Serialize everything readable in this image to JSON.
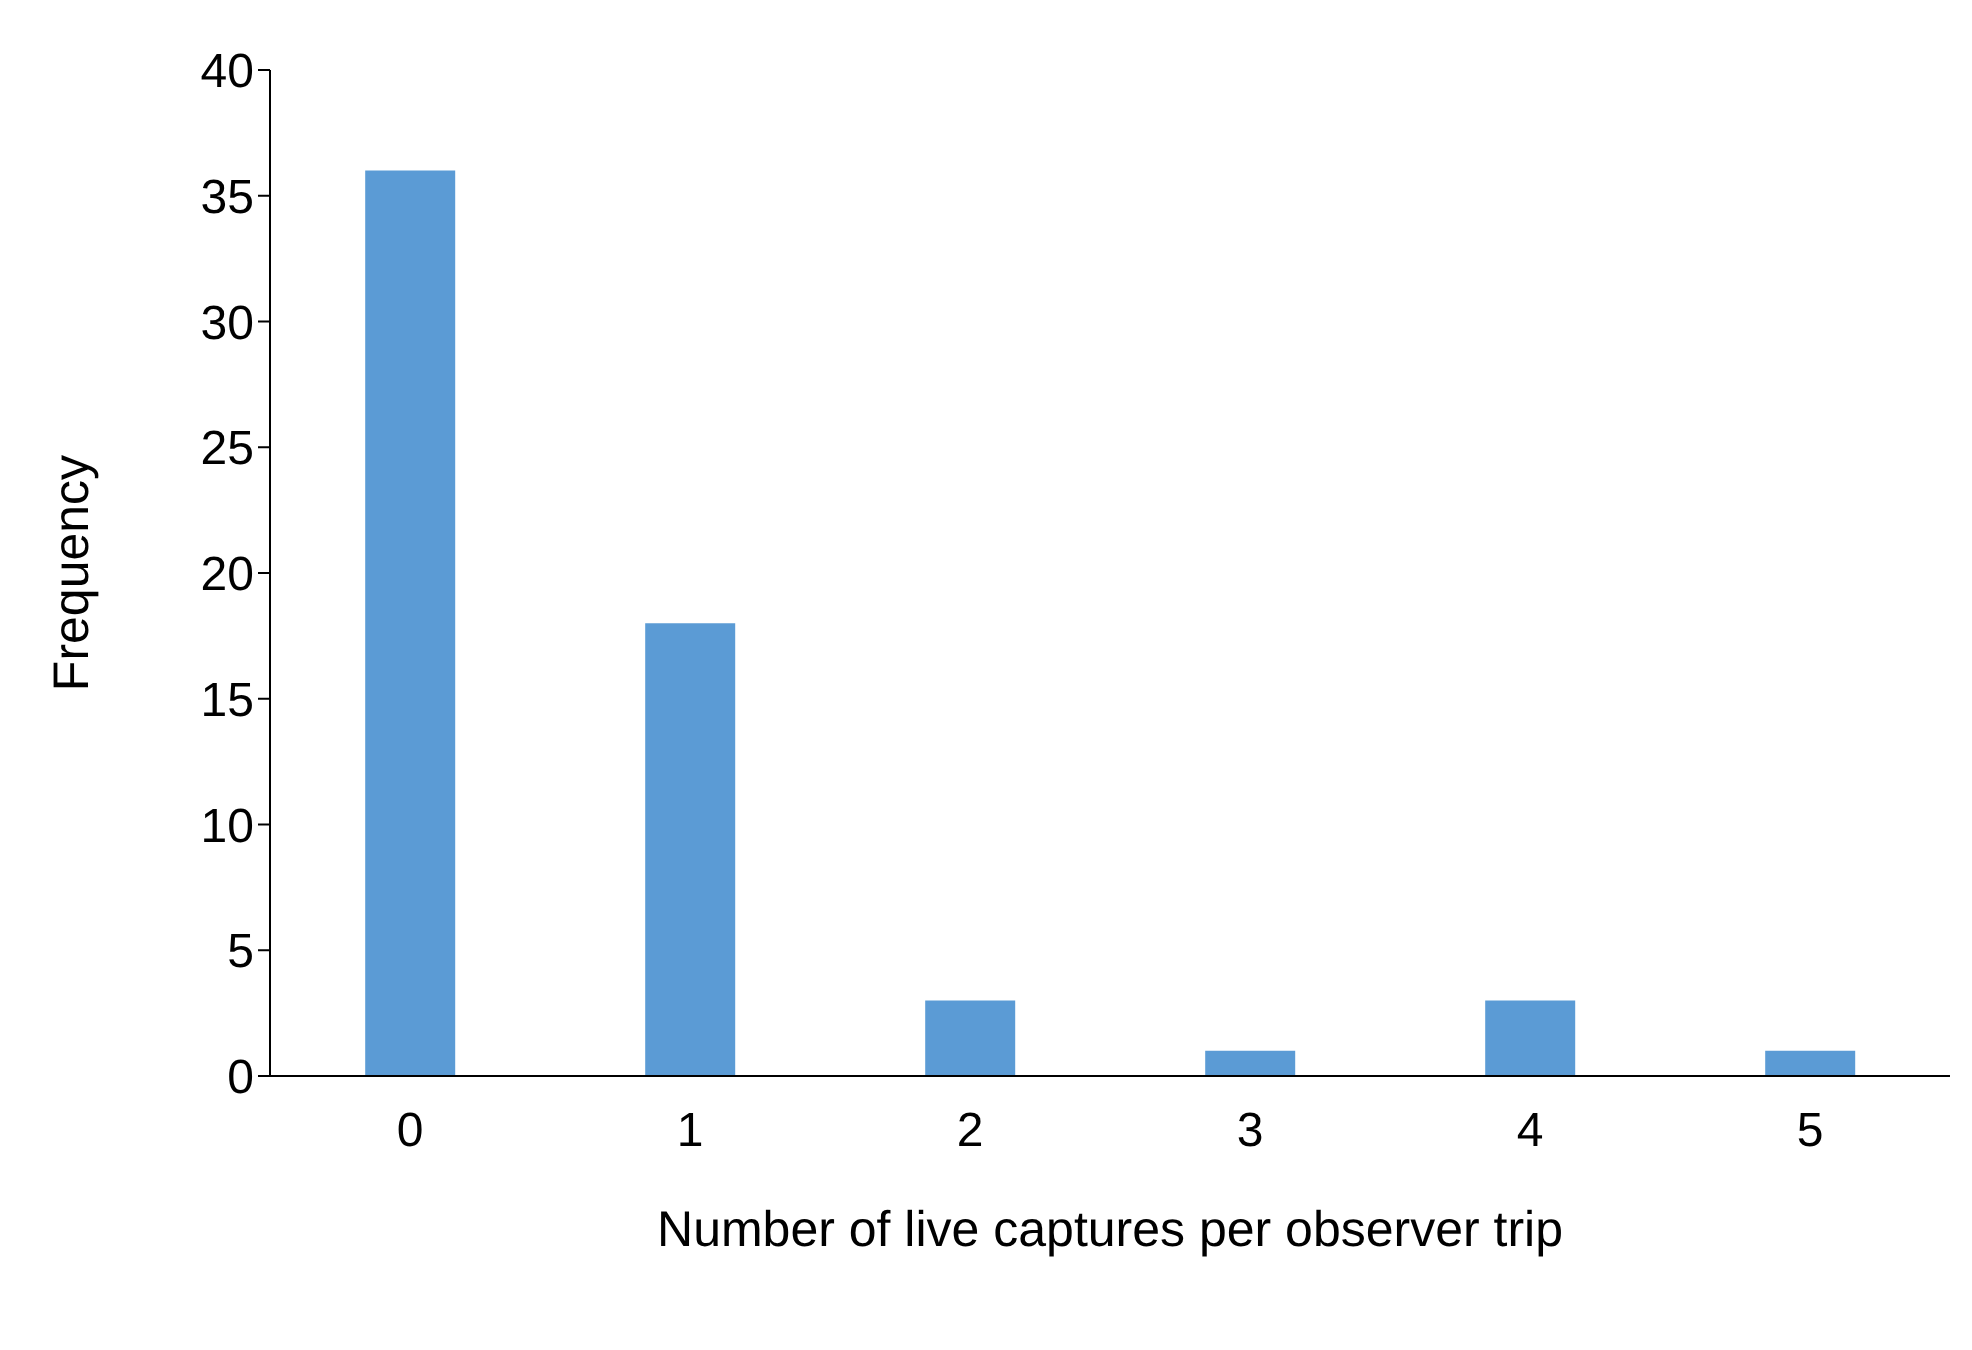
{
  "chart_data": {
    "type": "bar",
    "xlabel": "Number of live captures per observer trip",
    "ylabel": "Frequency",
    "categories": [
      "0",
      "1",
      "2",
      "3",
      "4",
      "5"
    ],
    "values": [
      36,
      18,
      3,
      1,
      3,
      1
    ],
    "color": "#5b9bd5",
    "ylim": [
      0,
      40
    ],
    "yticks": [
      0,
      5,
      10,
      15,
      20,
      25,
      30,
      35,
      40
    ],
    "grid": false,
    "legend": false
  }
}
